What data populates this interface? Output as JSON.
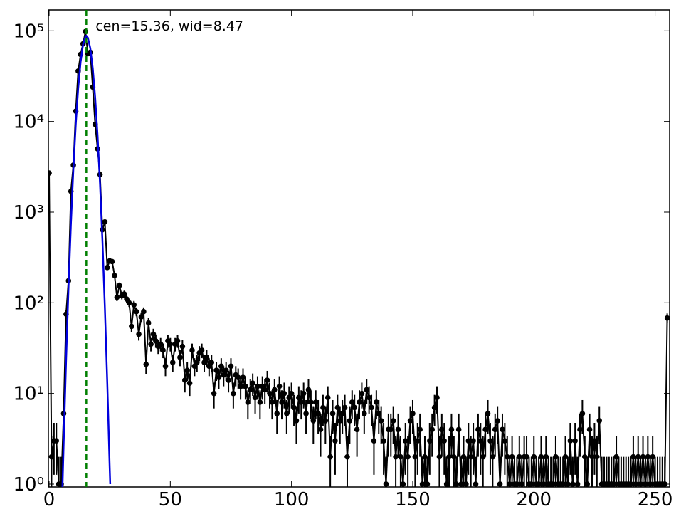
{
  "chart_data": {
    "type": "errorbar",
    "annotation": "cen=15.36, wid=8.47",
    "vline_x": 15.36,
    "vline_color": "#007f00",
    "log_y": true,
    "xlim": [
      -0.3,
      256
    ],
    "xticks": [
      0,
      50,
      100,
      150,
      200,
      250
    ],
    "ylim": [
      0.93,
      170000
    ],
    "yticks": [
      {
        "value": 1,
        "label": "10⁰"
      },
      {
        "value": 10,
        "label": "10¹"
      },
      {
        "value": 100,
        "label": "10²"
      },
      {
        "value": 1000,
        "label": "10³"
      },
      {
        "value": 10000,
        "label": "10⁴"
      },
      {
        "value": 100000,
        "label": "10⁵"
      }
    ],
    "series": [
      {
        "color": "#000000",
        "x": [
          0,
          1,
          2,
          3,
          4,
          5,
          6,
          7,
          8,
          9,
          10,
          11,
          12,
          13,
          14,
          15,
          16,
          17,
          18,
          19,
          20,
          21,
          22,
          23,
          24,
          25,
          26,
          27,
          28,
          29,
          30,
          31,
          32,
          33,
          34,
          35,
          36,
          37,
          38,
          39,
          40,
          41,
          42,
          43,
          44,
          45,
          46,
          47,
          48,
          49,
          50,
          51,
          52,
          53,
          54,
          55,
          56,
          57,
          58,
          59,
          60,
          61,
          62,
          63,
          64,
          65,
          66,
          67,
          68,
          69,
          70,
          71,
          72,
          73,
          74,
          75,
          76,
          77,
          78,
          79,
          80,
          81,
          82,
          83,
          84,
          85,
          86,
          87,
          88,
          89,
          90,
          91,
          92,
          93,
          94,
          95,
          96,
          97,
          98,
          99,
          100,
          101,
          102,
          103,
          104,
          105,
          106,
          107,
          108,
          109,
          110,
          111,
          112,
          113,
          114,
          115,
          116,
          117,
          118,
          119,
          120,
          121,
          122,
          123,
          124,
          125,
          126,
          127,
          128,
          129,
          130,
          131,
          132,
          133,
          134,
          135,
          136,
          137,
          138,
          139,
          140,
          141,
          142,
          143,
          144,
          145,
          146,
          147,
          148,
          149,
          150,
          151,
          152,
          153,
          154,
          155,
          156,
          157,
          158,
          159,
          160,
          161,
          162,
          163,
          164,
          165,
          166,
          167,
          168,
          169,
          170,
          171,
          172,
          173,
          174,
          175,
          176,
          177,
          178,
          179,
          180,
          181,
          182,
          183,
          184,
          185,
          186,
          187,
          188,
          189,
          190,
          191,
          192,
          193,
          194,
          195,
          196,
          197,
          198,
          199,
          200,
          201,
          202,
          203,
          204,
          205,
          206,
          207,
          208,
          209,
          210,
          211,
          212,
          213,
          214,
          215,
          216,
          217,
          218,
          219,
          220,
          221,
          222,
          223,
          224,
          225,
          226,
          227,
          228,
          229,
          230,
          231,
          232,
          233,
          234,
          235,
          236,
          237,
          238,
          239,
          240,
          241,
          242,
          243,
          244,
          245,
          246,
          247,
          248,
          249,
          250,
          251,
          252,
          253,
          254,
          255
        ],
        "values": [
          2700,
          2,
          3,
          3,
          1,
          1,
          6,
          75,
          175,
          1700,
          3300,
          13000,
          36000,
          55000,
          72000,
          98000,
          56000,
          58000,
          24000,
          9300,
          5000,
          2600,
          640,
          780,
          245,
          290,
          285,
          200,
          115,
          155,
          120,
          125,
          110,
          100,
          55,
          95,
          80,
          45,
          70,
          80,
          21,
          60,
          35,
          45,
          38,
          33,
          35,
          30,
          20,
          38,
          35,
          22,
          35,
          38,
          25,
          33,
          14,
          18,
          13,
          30,
          20,
          22,
          28,
          30,
          22,
          25,
          20,
          22,
          10,
          18,
          15,
          20,
          16,
          18,
          14,
          20,
          10,
          16,
          15,
          12,
          15,
          12,
          8,
          11,
          13,
          9,
          12,
          8,
          12,
          11,
          14,
          10,
          8,
          11,
          6,
          12,
          8,
          10,
          6,
          9,
          10,
          7,
          5,
          9,
          8,
          10,
          6,
          11,
          8,
          5,
          8,
          6,
          4,
          7,
          5,
          9,
          2,
          6,
          3,
          7,
          5,
          6,
          7,
          2,
          5,
          8,
          7,
          4,
          8,
          10,
          6,
          11,
          9,
          7,
          3,
          8,
          6,
          5,
          3,
          1,
          4,
          4,
          5,
          2,
          4,
          2,
          1,
          3,
          2,
          5,
          6,
          2,
          3,
          4,
          1,
          2,
          1,
          3,
          4,
          7,
          9,
          2,
          4,
          3,
          1,
          2,
          4,
          2,
          1,
          4,
          1,
          2,
          1,
          3,
          2,
          3,
          1,
          4,
          3,
          2,
          4,
          6,
          3,
          2,
          4,
          5,
          1,
          4,
          3,
          2,
          1,
          2,
          1,
          1,
          2,
          1,
          2,
          2,
          1,
          1,
          2,
          1,
          1,
          2,
          1,
          2,
          1,
          1,
          1,
          2,
          1,
          1,
          1,
          2,
          1,
          3,
          1,
          3,
          1,
          4,
          6,
          2,
          1,
          4,
          2,
          3,
          2,
          5,
          1,
          1,
          1,
          1,
          1,
          1,
          2,
          1,
          1,
          1,
          1,
          1,
          1,
          2,
          1,
          2,
          1,
          2,
          1,
          2,
          1,
          2,
          1,
          1,
          1,
          1,
          1,
          68
        ]
      },
      {
        "color": "#0000dd",
        "x": [
          5.5,
          6,
          7,
          8,
          9,
          10,
          11,
          12,
          13,
          14,
          15,
          15.36,
          16,
          17,
          18,
          19,
          20,
          21,
          22,
          23,
          24,
          25,
          25.2
        ],
        "values": [
          0.9,
          2.8,
          23,
          146,
          748,
          2966,
          9350,
          23250,
          45600,
          70750,
          86660,
          88000,
          83870,
          64100,
          38640,
          18400,
          6940,
          2060,
          484,
          89,
          13,
          1.5,
          1.0
        ]
      }
    ]
  }
}
